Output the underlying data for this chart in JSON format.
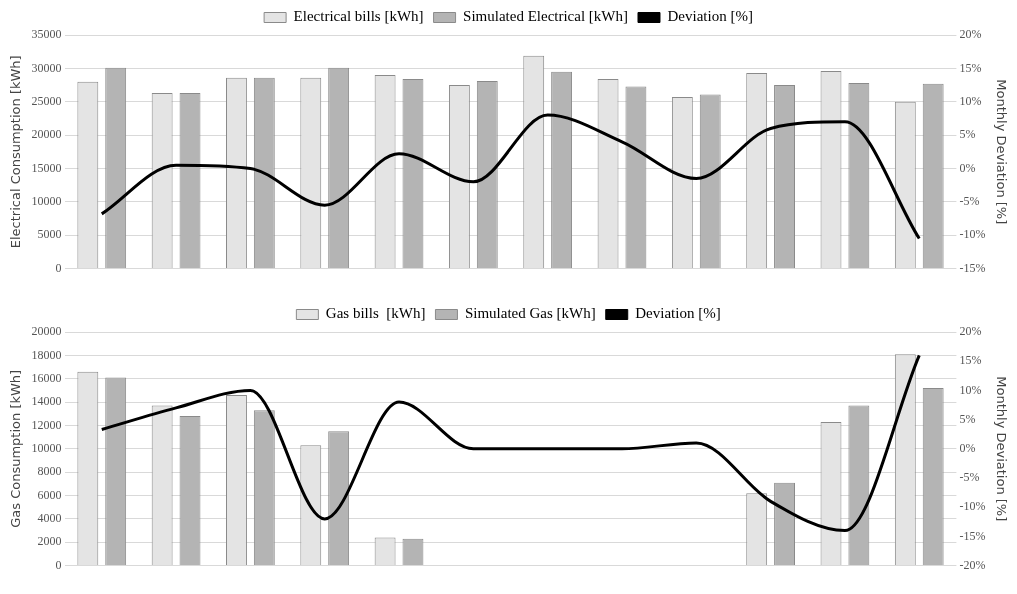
{
  "chart_data": [
    {
      "type": "bar",
      "ylabel": "Electrical Consumption [kWh]",
      "y2label": "Monthly Deviation [%]",
      "categories": [
        null,
        null,
        null,
        null,
        null,
        null,
        null,
        null,
        null,
        null,
        null,
        null
      ],
      "series": [
        {
          "name": "Electrical bills [kWh]",
          "color": "#e4e4e4",
          "values": [
            28000,
            26300,
            28600,
            28600,
            29000,
            27500,
            31900,
            28400,
            25700,
            29300,
            29600,
            25000
          ]
        },
        {
          "name": "Simulated Electrical [kWh]",
          "color": "#b4b4b4",
          "values": [
            30100,
            26300,
            28600,
            30100,
            28400,
            28100,
            29500,
            27300,
            26100,
            27500,
            27800,
            27700
          ]
        },
        {
          "name": "Deviation [%]",
          "type": "line",
          "axis": "y2",
          "color": "#000000",
          "values": [
            -6.8,
            0.5,
            0,
            -5.5,
            2.2,
            -2,
            8,
            4,
            -1.5,
            6,
            7,
            -10.5
          ]
        }
      ],
      "ylim": [
        0,
        35000
      ],
      "yticks": [
        0,
        5000,
        10000,
        15000,
        20000,
        25000,
        30000,
        35000
      ],
      "y2lim": [
        -15,
        20
      ],
      "y2ticks": [
        {
          "value": -15,
          "label": "-15%"
        },
        {
          "value": -10,
          "label": "-10%"
        },
        {
          "value": -5,
          "label": "-5%"
        },
        {
          "value": 0,
          "label": "0%"
        },
        {
          "value": 5,
          "label": "5%"
        },
        {
          "value": 10,
          "label": "10%"
        },
        {
          "value": 15,
          "label": "15%"
        },
        {
          "value": 20,
          "label": "20%"
        }
      ],
      "grid": "y",
      "legend": "top",
      "marker": "none"
    },
    {
      "type": "bar",
      "ylabel": "Gas Consumption [kWh]",
      "y2label": "Monthly Deviation [%]",
      "categories": [
        null,
        null,
        null,
        null,
        null,
        null,
        null,
        null,
        null,
        null,
        null,
        null
      ],
      "series": [
        {
          "name": "Gas bills  [kWh]",
          "color": "#e4e4e4",
          "values": [
            16600,
            13700,
            14600,
            10300,
            2400,
            0,
            0,
            0,
            0,
            6200,
            12300,
            18100
          ]
        },
        {
          "name": "Simulated Gas [kWh]",
          "color": "#b4b4b4",
          "values": [
            16100,
            12800,
            13300,
            11500,
            2300,
            0,
            0,
            0,
            0,
            7100,
            13700,
            15200
          ]
        },
        {
          "name": "Deviation [%]",
          "type": "line",
          "axis": "y2",
          "color": "#000000",
          "values": [
            3.3,
            7,
            10,
            -12,
            8,
            0,
            0,
            0,
            1,
            -9,
            -14,
            16
          ]
        }
      ],
      "ylim": [
        0,
        20000
      ],
      "yticks": [
        0,
        2000,
        4000,
        6000,
        8000,
        10000,
        12000,
        14000,
        16000,
        18000,
        20000
      ],
      "y2lim": [
        -20,
        20
      ],
      "y2ticks": [
        {
          "value": -20,
          "label": "-20%"
        },
        {
          "value": -15,
          "label": "-15%"
        },
        {
          "value": -10,
          "label": "-10%"
        },
        {
          "value": -5,
          "label": "-5%"
        },
        {
          "value": 0,
          "label": "0%"
        },
        {
          "value": 5,
          "label": "5%"
        },
        {
          "value": 10,
          "label": "10%"
        },
        {
          "value": 15,
          "label": "15%"
        },
        {
          "value": 20,
          "label": "20%"
        }
      ],
      "grid": "y",
      "legend": "top",
      "marker": "none"
    }
  ]
}
